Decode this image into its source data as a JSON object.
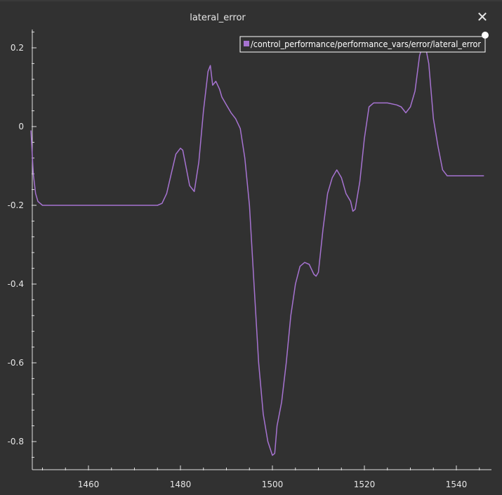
{
  "window": {
    "title": "lateral_error",
    "close_glyph": "✕"
  },
  "icons": {
    "close": "close-icon",
    "legend_swatch": "legend-swatch-icon",
    "resize_handle": "resize-handle-icon"
  },
  "colors": {
    "background": "#313131",
    "series": "#a673d1",
    "axis": "#e0e0e0"
  },
  "chart_data": {
    "type": "line",
    "title": "lateral_error",
    "xlabel": "",
    "ylabel": "",
    "xlim": [
      1447.5,
      1546
    ],
    "ylim": [
      -0.86,
      0.25
    ],
    "x_ticks": [
      1460,
      1480,
      1500,
      1520,
      1540
    ],
    "y_ticks": [
      0.2,
      0,
      -0.2,
      -0.4,
      -0.6,
      -0.8
    ],
    "x_tick_labels": [
      "1460",
      "1480",
      "1500",
      "1520",
      "1540"
    ],
    "y_tick_labels": [
      "0.2",
      "0",
      "-0.2",
      "-0.4",
      "-0.6",
      "-0.8"
    ],
    "grid": false,
    "legend": "top-right",
    "series": [
      {
        "name": "/control_performance/performance_vars/error/lateral_error",
        "color": "#a673d1",
        "x": [
          1447.5,
          1448.0,
          1448.5,
          1449.0,
          1450.0,
          1452.0,
          1455.0,
          1460.0,
          1465.0,
          1470.0,
          1475.0,
          1476.0,
          1477.0,
          1478.0,
          1479.0,
          1480.0,
          1480.5,
          1481.0,
          1482.0,
          1483.0,
          1484.0,
          1485.0,
          1486.0,
          1486.5,
          1487.0,
          1487.7,
          1488.5,
          1489.0,
          1490.0,
          1491.0,
          1492.0,
          1493.0,
          1494.0,
          1495.0,
          1496.0,
          1497.0,
          1498.0,
          1499.0,
          1500.0,
          1500.5,
          1501.0,
          1502.0,
          1503.0,
          1504.0,
          1505.0,
          1506.0,
          1507.0,
          1508.0,
          1509.0,
          1509.5,
          1510.0,
          1511.0,
          1512.0,
          1513.0,
          1514.0,
          1515.0,
          1516.0,
          1517.0,
          1517.5,
          1518.0,
          1519.0,
          1520.0,
          1521.0,
          1522.0,
          1523.0,
          1525.0,
          1527.0,
          1528.0,
          1529.0,
          1530.0,
          1531.0,
          1532.0,
          1533.0,
          1534.0,
          1535.0,
          1536.0,
          1537.0,
          1538.0,
          1540.0,
          1542.0,
          1546.0
        ],
        "y": [
          -0.01,
          -0.12,
          -0.17,
          -0.19,
          -0.2,
          -0.2,
          -0.2,
          -0.2,
          -0.2,
          -0.2,
          -0.2,
          -0.195,
          -0.17,
          -0.12,
          -0.07,
          -0.055,
          -0.06,
          -0.09,
          -0.15,
          -0.165,
          -0.09,
          0.04,
          0.14,
          0.155,
          0.105,
          0.115,
          0.095,
          0.075,
          0.055,
          0.035,
          0.02,
          -0.005,
          -0.08,
          -0.2,
          -0.4,
          -0.6,
          -0.73,
          -0.8,
          -0.835,
          -0.83,
          -0.76,
          -0.7,
          -0.6,
          -0.48,
          -0.4,
          -0.355,
          -0.345,
          -0.35,
          -0.375,
          -0.38,
          -0.37,
          -0.26,
          -0.17,
          -0.13,
          -0.11,
          -0.13,
          -0.17,
          -0.19,
          -0.215,
          -0.21,
          -0.14,
          -0.03,
          0.05,
          0.06,
          0.06,
          0.06,
          0.055,
          0.05,
          0.035,
          0.05,
          0.09,
          0.18,
          0.22,
          0.16,
          0.02,
          -0.05,
          -0.11,
          -0.125,
          -0.125,
          -0.125,
          -0.125
        ]
      }
    ]
  }
}
